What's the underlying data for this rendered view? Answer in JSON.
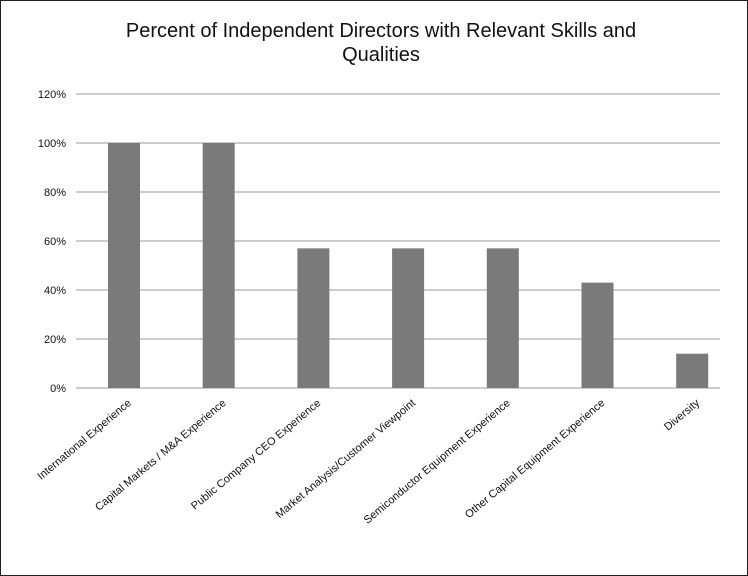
{
  "chart_data": {
    "type": "bar",
    "title_line1": "Percent of Independent Directors with Relevant Skills and",
    "title_line2": "Qualities",
    "categories": [
      "International Experience",
      "Capital Markets / M&A Experience",
      "Public Company CEO Experience",
      "Market Analysis/Customer Viewpoint",
      "Semiconductor Equipment Experience",
      "Other Capital Equipment Experience",
      "Diversity"
    ],
    "values": [
      100,
      100,
      57,
      57,
      57,
      43,
      14
    ],
    "ylim": [
      0,
      120
    ],
    "y_ticks": [
      "0%",
      "20%",
      "40%",
      "60%",
      "80%",
      "100%",
      "120%"
    ],
    "y_tick_values": [
      0,
      20,
      40,
      60,
      80,
      100,
      120
    ],
    "grid": true,
    "bar_color": "#7a7a7a",
    "grid_color": "#9a9a9a"
  }
}
